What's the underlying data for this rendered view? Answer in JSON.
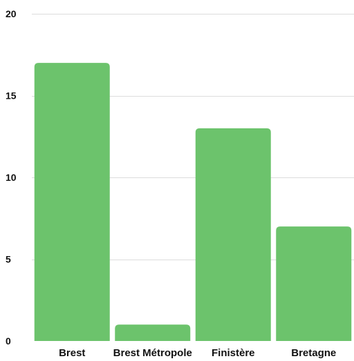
{
  "chart_data": {
    "type": "bar",
    "categories": [
      "Brest",
      "Brest Métropole",
      "Finistère",
      "Bretagne"
    ],
    "values": [
      17,
      1,
      13,
      7
    ],
    "title": "",
    "xlabel": "",
    "ylabel": "",
    "ylim": [
      0,
      20
    ],
    "yticks": [
      0,
      5,
      10,
      15,
      20
    ],
    "grid": true,
    "legend": "none",
    "colors": {
      "bar": "#6cc36c",
      "grid": "#dcdcdc",
      "text": "#111111"
    }
  }
}
